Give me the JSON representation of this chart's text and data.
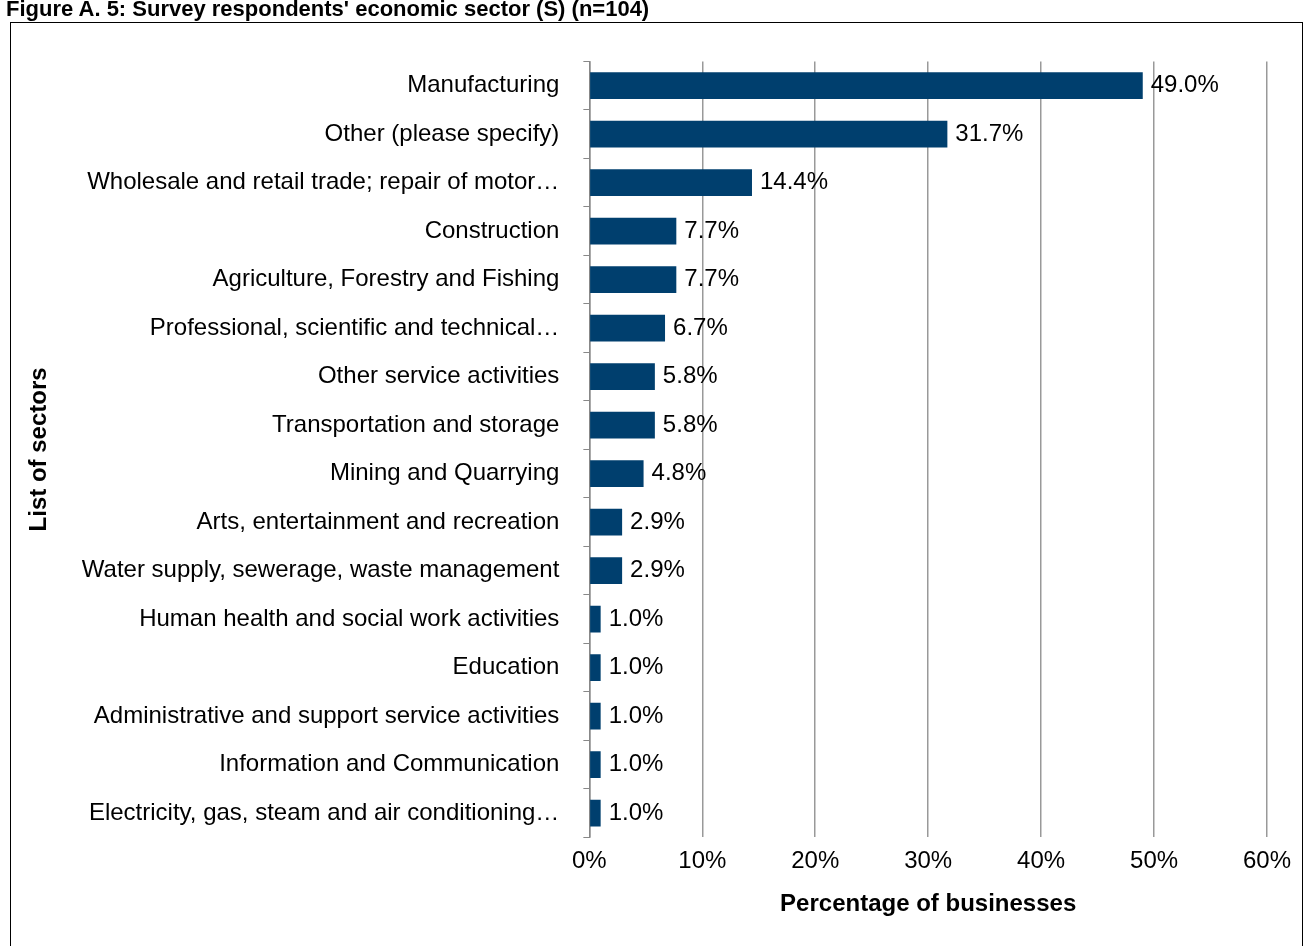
{
  "chart_data": {
    "type": "bar",
    "orientation": "horizontal",
    "title": "Figure A. 5: Survey respondents' economic sector (S) (n=104)",
    "xlabel": "Percentage of businesses",
    "ylabel": "List of sectors",
    "categories": [
      "Manufacturing",
      "Other (please specify)",
      "Wholesale and retail trade; repair of motor…",
      "Construction",
      "Agriculture, Forestry and Fishing",
      "Professional, scientific and technical…",
      "Other service activities",
      "Transportation and storage",
      "Mining and Quarrying",
      "Arts, entertainment and recreation",
      "Water supply, sewerage, waste management",
      "Human health and social work activities",
      "Education",
      "Administrative and support service activities",
      "Information and Communication",
      "Electricity, gas, steam and air conditioning…"
    ],
    "values": [
      49.0,
      31.7,
      14.4,
      7.7,
      7.7,
      6.7,
      5.8,
      5.8,
      4.8,
      2.9,
      2.9,
      1.0,
      1.0,
      1.0,
      1.0,
      1.0
    ],
    "value_labels": [
      "49.0%",
      "31.7%",
      "14.4%",
      "7.7%",
      "7.7%",
      "6.7%",
      "5.8%",
      "5.8%",
      "4.8%",
      "2.9%",
      "2.9%",
      "1.0%",
      "1.0%",
      "1.0%",
      "1.0%",
      "1.0%"
    ],
    "color": "#003f6e",
    "xlim": [
      0,
      60
    ],
    "xticks": [
      {
        "value": 0,
        "label": "0%"
      },
      {
        "value": 10,
        "label": "10%"
      },
      {
        "value": 20,
        "label": "20%"
      },
      {
        "value": 30,
        "label": "30%"
      },
      {
        "value": 40,
        "label": "40%"
      },
      {
        "value": 50,
        "label": "50%"
      },
      {
        "value": 60,
        "label": "60%"
      }
    ],
    "grid": "x",
    "legend": false
  }
}
